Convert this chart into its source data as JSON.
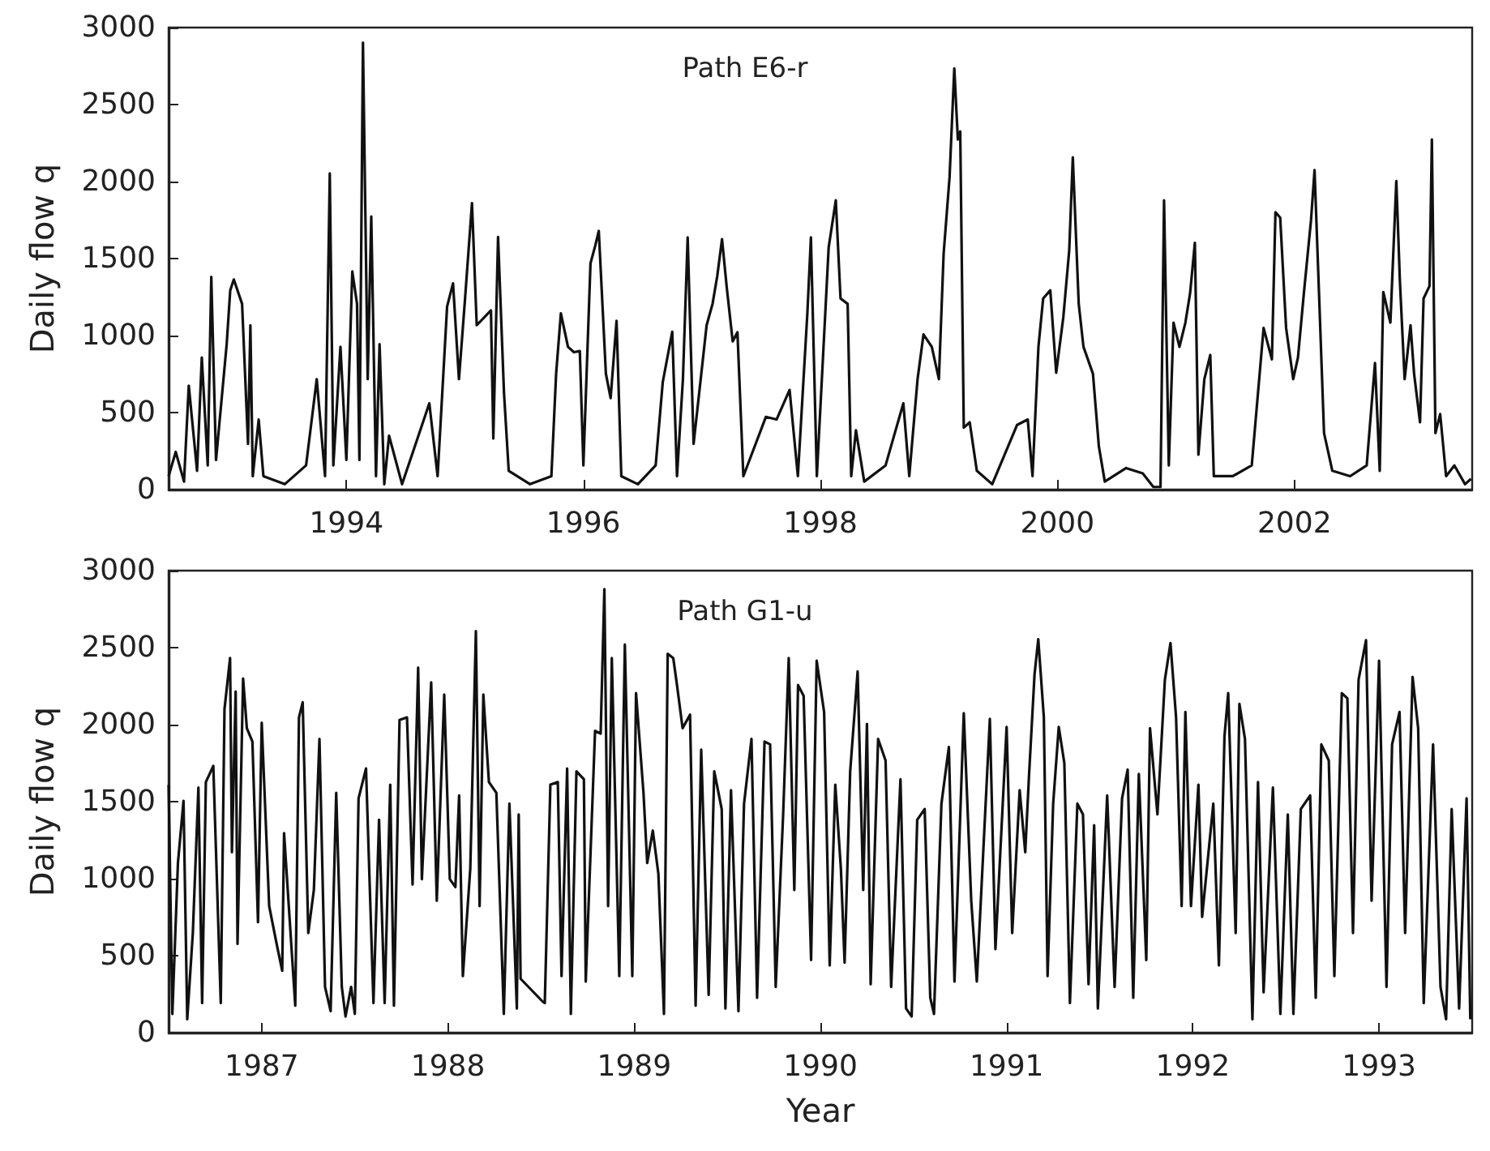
{
  "chart_data": [
    {
      "type": "line",
      "ylabel": "Daily flow q",
      "annotations": [
        "Path E6-r"
      ],
      "marker": "none",
      "line_style": "solid",
      "grid": false,
      "xlim": [
        1992.5,
        2003.5
      ],
      "xticks": [
        1994,
        1996,
        1998,
        2000,
        2002
      ],
      "ylim": [
        0,
        3000
      ],
      "yticks": [
        0,
        500,
        1000,
        1500,
        2000,
        2500,
        3000
      ],
      "series": [
        {
          "color": "#111111",
          "x": [
            1992.5,
            1992.56,
            1992.63,
            1992.67,
            1992.74,
            1992.78,
            1992.83,
            1992.86,
            1992.9,
            1992.99,
            1993.02,
            1993.05,
            1993.12,
            1993.17,
            1993.19,
            1993.21,
            1993.26,
            1993.3,
            1993.48,
            1993.66,
            1993.75,
            1993.82,
            1993.86,
            1993.89,
            1993.95,
            1994.0,
            1994.05,
            1994.09,
            1994.11,
            1994.14,
            1994.18,
            1994.21,
            1994.25,
            1994.28,
            1994.32,
            1994.36,
            1994.47,
            1994.7,
            1994.77,
            1994.85,
            1994.9,
            1994.95,
            1995.0,
            1995.06,
            1995.1,
            1995.22,
            1995.24,
            1995.28,
            1995.33,
            1995.37,
            1995.55,
            1995.73,
            1995.77,
            1995.81,
            1995.87,
            1995.92,
            1995.97,
            1996.0,
            1996.06,
            1996.1,
            1996.13,
            1996.19,
            1996.23,
            1996.28,
            1996.32,
            1996.46,
            1996.61,
            1996.67,
            1996.75,
            1996.79,
            1996.84,
            1996.88,
            1996.93,
            1997.04,
            1997.09,
            1997.13,
            1997.17,
            1997.21,
            1997.26,
            1997.3,
            1997.35,
            1997.54,
            1997.63,
            1997.74,
            1997.81,
            1997.89,
            1997.92,
            1997.97,
            1998.07,
            1998.13,
            1998.17,
            1998.23,
            1998.26,
            1998.3,
            1998.37,
            1998.55,
            1998.7,
            1998.75,
            1998.82,
            1998.87,
            1998.94,
            1999.0,
            1999.04,
            1999.09,
            1999.13,
            1999.16,
            1999.18,
            1999.21,
            1999.26,
            1999.32,
            1999.45,
            1999.66,
            1999.75,
            1999.79,
            1999.84,
            1999.88,
            1999.94,
            1999.99,
            2000.05,
            2000.1,
            2000.13,
            2000.18,
            2000.22,
            2000.3,
            2000.35,
            2000.4,
            2000.58,
            2000.72,
            2000.81,
            2000.87,
            2000.9,
            2000.94,
            2000.98,
            2001.03,
            2001.08,
            2001.12,
            2001.16,
            2001.19,
            2001.24,
            2001.29,
            2001.32,
            2001.48,
            2001.64,
            2001.74,
            2001.81,
            2001.84,
            2001.88,
            2001.93,
            2001.99,
            2002.03,
            2002.08,
            2002.14,
            2002.17,
            2002.21,
            2002.25,
            2002.32,
            2002.47,
            2002.61,
            2002.68,
            2002.72,
            2002.75,
            2002.81,
            2002.86,
            2002.89,
            2002.93,
            2002.98,
            2003.01,
            2003.06,
            2003.09,
            2003.14,
            2003.16,
            2003.19,
            2003.23,
            2003.28,
            2003.35,
            2003.44,
            2003.49
          ],
          "values": [
            87,
            245,
            52,
            675,
            122,
            857,
            157,
            1381,
            192,
            944,
            1294,
            1364,
            1206,
            297,
            1067,
            87,
            455,
            87,
            35,
            157,
            717,
            87,
            2053,
            157,
            927,
            192,
            1416,
            1206,
            192,
            2902,
            717,
            1773,
            87,
            944,
            35,
            350,
            35,
            560,
            87,
            1189,
            1339,
            717,
            1224,
            1860,
            1067,
            1164,
            332,
            1640,
            629,
            122,
            35,
            87,
            752,
            1144,
            927,
            892,
            899,
            157,
            1469,
            1584,
            1679,
            752,
            594,
            1095,
            87,
            35,
            157,
            699,
            1025,
            87,
            717,
            1637,
            297,
            1067,
            1206,
            1388,
            1626,
            1311,
            962,
            1021,
            87,
            472,
            455,
            647,
            87,
            1144,
            1637,
            87,
            1574,
            1878,
            1241,
            1206,
            87,
            385,
            52,
            157,
            560,
            87,
            717,
            1007,
            927,
            717,
            1532,
            2028,
            2735,
            2273,
            2325,
            402,
            437,
            122,
            35,
            420,
            455,
            87,
            927,
            1241,
            1294,
            759,
            1119,
            1556,
            2158,
            1206,
            927,
            752,
            280,
            52,
            140,
            105,
            17,
            17,
            1878,
            157,
            1084,
            927,
            1084,
            1276,
            1602,
            227,
            717,
            874,
            87,
            87,
            157,
            1049,
            846,
            1801,
            1766,
            1049,
            717,
            857,
            1276,
            1748,
            2074,
            1224,
            367,
            122,
            87,
            157,
            822,
            122,
            1283,
            1084,
            2004,
            1357,
            717,
            1067,
            752,
            437,
            1241,
            1322,
            2273,
            367,
            490,
            87,
            157,
            35,
            70
          ]
        }
      ]
    },
    {
      "type": "line",
      "ylabel": "Daily flow q",
      "xlabel": "Year",
      "annotations": [
        "Path G1-u"
      ],
      "marker": "none",
      "line_style": "solid",
      "grid": false,
      "xlim": [
        1986.5,
        1993.5
      ],
      "xticks": [
        1987,
        1988,
        1989,
        1990,
        1991,
        1992,
        1993
      ],
      "ylim": [
        0,
        3000
      ],
      "yticks": [
        0,
        500,
        1000,
        1500,
        2000,
        2500,
        3000
      ],
      "series": [
        {
          "color": "#111111",
          "x": [
            1986.5,
            1986.52,
            1986.55,
            1986.58,
            1986.6,
            1986.63,
            1986.66,
            1986.68,
            1986.7,
            1986.74,
            1986.78,
            1986.8,
            1986.83,
            1986.84,
            1986.86,
            1986.87,
            1986.9,
            1986.92,
            1986.95,
            1986.98,
            1987.0,
            1987.02,
            1987.04,
            1987.08,
            1987.11,
            1987.12,
            1987.18,
            1987.2,
            1987.22,
            1987.25,
            1987.28,
            1987.31,
            1987.34,
            1987.37,
            1987.4,
            1987.43,
            1987.45,
            1987.48,
            1987.5,
            1987.52,
            1987.56,
            1987.6,
            1987.63,
            1987.66,
            1987.69,
            1987.71,
            1987.74,
            1987.78,
            1987.81,
            1987.84,
            1987.86,
            1987.91,
            1987.94,
            1987.98,
            1988.01,
            1988.04,
            1988.06,
            1988.08,
            1988.12,
            1988.15,
            1988.17,
            1988.19,
            1988.22,
            1988.26,
            1988.3,
            1988.33,
            1988.37,
            1988.38,
            1988.39,
            1988.51,
            1988.52,
            1988.55,
            1988.59,
            1988.61,
            1988.64,
            1988.66,
            1988.69,
            1988.73,
            1988.74,
            1988.79,
            1988.82,
            1988.84,
            1988.86,
            1988.88,
            1988.92,
            1988.95,
            1988.99,
            1989.01,
            1989.05,
            1989.07,
            1989.1,
            1989.13,
            1989.16,
            1989.18,
            1989.21,
            1989.23,
            1989.26,
            1989.3,
            1989.33,
            1989.36,
            1989.4,
            1989.43,
            1989.47,
            1989.49,
            1989.52,
            1989.56,
            1989.59,
            1989.63,
            1989.66,
            1989.7,
            1989.73,
            1989.76,
            1989.8,
            1989.83,
            1989.86,
            1989.88,
            1989.91,
            1989.95,
            1989.98,
            1990.02,
            1990.05,
            1990.08,
            1990.11,
            1990.13,
            1990.16,
            1990.2,
            1990.23,
            1990.25,
            1990.27,
            1990.31,
            1990.35,
            1990.38,
            1990.43,
            1990.46,
            1990.49,
            1990.52,
            1990.56,
            1990.59,
            1990.61,
            1990.65,
            1990.69,
            1990.72,
            1990.77,
            1990.81,
            1990.84,
            1990.91,
            1990.94,
            1991.0,
            1991.03,
            1991.07,
            1991.1,
            1991.12,
            1991.15,
            1991.17,
            1991.2,
            1991.22,
            1991.25,
            1991.28,
            1991.31,
            1991.34,
            1991.38,
            1991.41,
            1991.44,
            1991.47,
            1991.49,
            1991.54,
            1991.58,
            1991.62,
            1991.65,
            1991.68,
            1991.71,
            1991.75,
            1991.77,
            1991.81,
            1991.85,
            1991.88,
            1991.91,
            1991.94,
            1991.96,
            1991.99,
            1992.03,
            1992.05,
            1992.11,
            1992.14,
            1992.17,
            1992.19,
            1992.23,
            1992.25,
            1992.28,
            1992.32,
            1992.35,
            1992.38,
            1992.43,
            1992.47,
            1992.51,
            1992.54,
            1992.58,
            1992.63,
            1992.66,
            1992.69,
            1992.73,
            1992.76,
            1992.8,
            1992.83,
            1992.86,
            1992.89,
            1992.93,
            1992.96,
            1993.0,
            1993.04,
            1993.07,
            1993.11,
            1993.14,
            1993.18,
            1993.21,
            1993.24,
            1993.29,
            1993.33,
            1993.36,
            1993.39,
            1993.43,
            1993.47,
            1993.49
          ],
          "values": [
            1610,
            122,
            1102,
            1505,
            87,
            647,
            1592,
            192,
            1627,
            1732,
            192,
            2100,
            2432,
            1172,
            2215,
            577,
            2300,
            1977,
            1890,
            717,
            2012,
            1417,
            822,
            577,
            402,
            1295,
            175,
            2047,
            2145,
            647,
            927,
            1907,
            297,
            140,
            1557,
            297,
            105,
            297,
            122,
            1522,
            1715,
            192,
            1382,
            192,
            1610,
            175,
            2030,
            2047,
            962,
            2370,
            997,
            2275,
            857,
            2195,
            997,
            945,
            1540,
            367,
            1067,
            2607,
            822,
            2195,
            1627,
            1557,
            122,
            1487,
            157,
            1417,
            350,
            200,
            192,
            1610,
            1627,
            367,
            1715,
            122,
            1697,
            1645,
            332,
            1960,
            1942,
            2880,
            822,
            2432,
            367,
            2520,
            367,
            2205,
            1557,
            1102,
            1312,
            1032,
            122,
            2460,
            2432,
            2257,
            1977,
            2065,
            175,
            1837,
            245,
            1697,
            1452,
            157,
            1575,
            140,
            1487,
            1907,
            227,
            1890,
            1872,
            297,
            1417,
            2432,
            927,
            2257,
            2187,
            472,
            2415,
            2082,
            437,
            1610,
            1067,
            455,
            1697,
            2345,
            927,
            2005,
            315,
            1907,
            1767,
            297,
            1645,
            157,
            105,
            1382,
            1452,
            227,
            122,
            1487,
            1855,
            332,
            2075,
            857,
            332,
            2037,
            542,
            1985,
            647,
            1575,
            1172,
            1662,
            2327,
            2555,
            2047,
            367,
            1487,
            1985,
            1750,
            192,
            1487,
            1417,
            315,
            1347,
            157,
            1540,
            297,
            1522,
            1708,
            227,
            1680,
            472,
            1977,
            1417,
            2292,
            2530,
            2047,
            822,
            2082,
            822,
            1610,
            752,
            1487,
            437,
            1925,
            2205,
            647,
            2135,
            1907,
            87,
            1627,
            262,
            1592,
            122,
            1417,
            122,
            1452,
            1540,
            227,
            1872,
            1767,
            367,
            2205,
            2170,
            647,
            2292,
            2548,
            857,
            2415,
            297,
            1872,
            2082,
            647,
            2310,
            1977,
            192,
            1872,
            297,
            87,
            1452,
            157,
            1522,
            87
          ]
        }
      ]
    }
  ]
}
